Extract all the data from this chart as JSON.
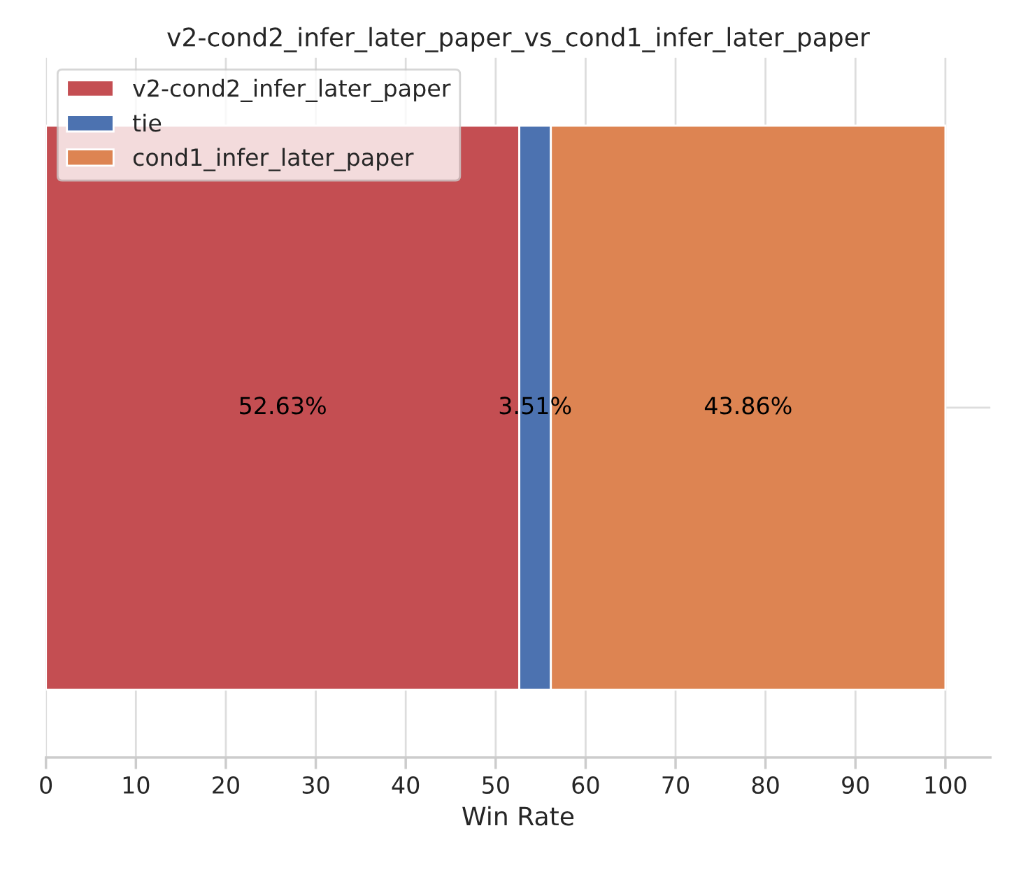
{
  "chart_data": {
    "type": "bar",
    "orientation": "horizontal",
    "stacked": true,
    "title": "v2-cond2_infer_later_paper_vs_cond1_infer_later_paper",
    "xlabel": "Win Rate",
    "categories": [
      null
    ],
    "series": [
      {
        "name": "v2-cond2_infer_later_paper",
        "color": "#c44e52",
        "values": [
          52.63
        ],
        "value_labels": [
          "52.63%"
        ]
      },
      {
        "name": "tie",
        "color": "#4c72b0",
        "values": [
          3.51
        ],
        "value_labels": [
          "3.51%"
        ]
      },
      {
        "name": "cond1_infer_later_paper",
        "color": "#dd8452",
        "values": [
          43.86
        ],
        "value_labels": [
          "43.86%"
        ]
      }
    ],
    "xlim": [
      0,
      105
    ],
    "xticks": [
      0,
      10,
      20,
      30,
      40,
      50,
      60,
      70,
      80,
      90,
      100
    ],
    "grid": true,
    "legend": "top left"
  }
}
